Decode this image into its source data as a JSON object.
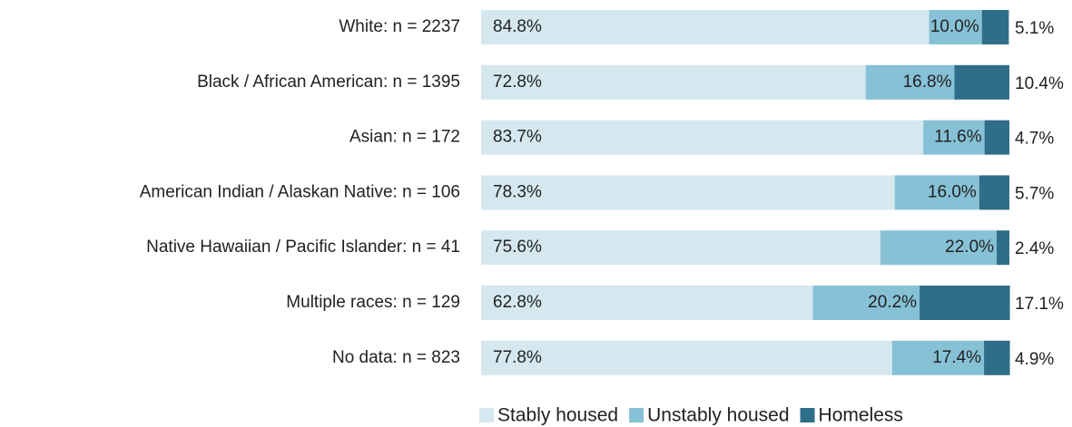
{
  "chart_data": {
    "type": "stacked-bar-horizontal",
    "categories": [
      "White: n = 2237",
      "Black / African American: n = 1395",
      "Asian: n = 172",
      "American Indian / Alaskan Native: n = 106",
      "Native Hawaiian / Pacific Islander: n = 41",
      "Multiple races: n = 129",
      "No data: n = 823"
    ],
    "xlim": [
      0,
      100
    ],
    "legend": "bottom",
    "series": [
      {
        "name": "Stably housed",
        "color": "#d5e8f0",
        "values": [
          84.8,
          72.8,
          83.7,
          78.3,
          75.6,
          62.8,
          77.8
        ],
        "value_labels": [
          "84.8%",
          "72.8%",
          "83.7%",
          "78.3%",
          "75.6%",
          "62.8%",
          "77.8%"
        ]
      },
      {
        "name": "Unstably housed",
        "color": "#86c1d6",
        "values": [
          10.0,
          16.8,
          11.6,
          16.0,
          22.0,
          20.2,
          17.4
        ],
        "value_labels": [
          "10.0%",
          "16.8%",
          "11.6%",
          "16.0%",
          "22.0%",
          "20.2%",
          "17.4%"
        ]
      },
      {
        "name": "Homeless",
        "color": "#2f6e89",
        "values": [
          5.1,
          10.4,
          4.7,
          5.7,
          2.4,
          17.1,
          4.9
        ],
        "value_labels": [
          "5.1%",
          "10.4%",
          "4.7%",
          "5.7%",
          "2.4%",
          "17.1%",
          "4.9%"
        ]
      }
    ]
  }
}
